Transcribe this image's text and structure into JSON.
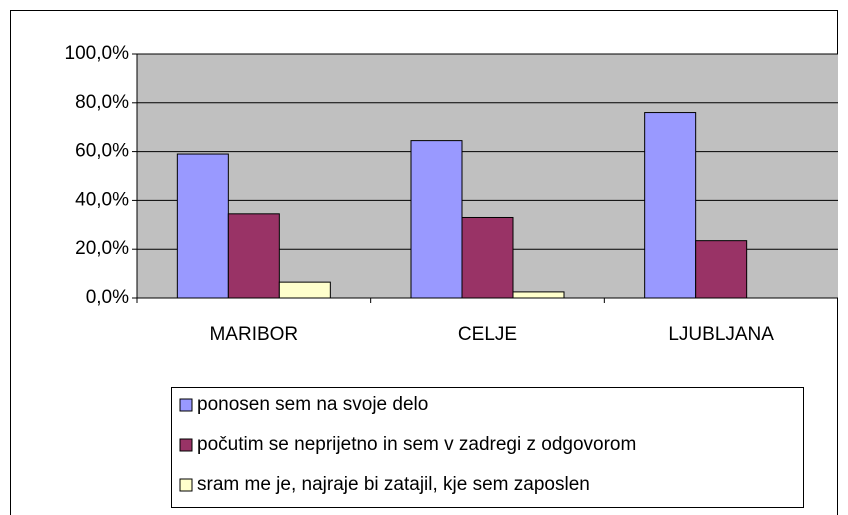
{
  "chart_data": {
    "type": "bar",
    "categories": [
      "MARIBOR",
      "CELJE",
      "LJUBLJANA"
    ],
    "series": [
      {
        "name": "ponosen sem na svoje delo",
        "color": "#9999ff",
        "values": [
          59,
          64.5,
          76
        ]
      },
      {
        "name": "počutim se neprijetno in sem v zadregi z odgovorom",
        "color": "#993366",
        "values": [
          34.5,
          33,
          23.5
        ]
      },
      {
        "name": "sram me je, najraje bi zatajil, kje sem zaposlen",
        "color": "#ffffcc",
        "values": [
          6.5,
          2.5,
          0
        ]
      }
    ],
    "ylim": [
      0,
      100
    ],
    "yticks": [
      {
        "value": 0,
        "label": "0,0%"
      },
      {
        "value": 20,
        "label": "20,0%"
      },
      {
        "value": 40,
        "label": "40,0%"
      },
      {
        "value": 60,
        "label": "60,0%"
      },
      {
        "value": 80,
        "label": "80,0%"
      },
      {
        "value": 100,
        "label": "100,0%"
      }
    ],
    "grid": true,
    "plot_background": "#c0c0c0"
  }
}
